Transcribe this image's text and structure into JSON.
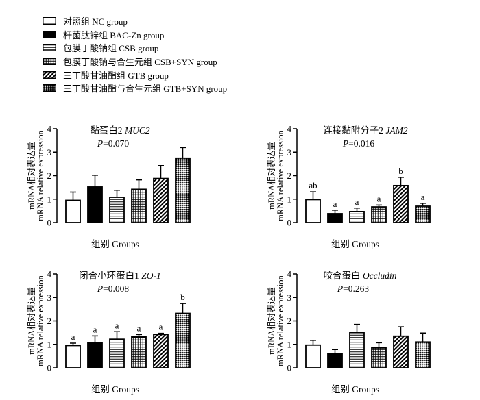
{
  "legend": [
    {
      "label": "对照组  NC group",
      "pattern": "white"
    },
    {
      "label": "杆菌肽锌组  BAC-Zn group",
      "pattern": "black"
    },
    {
      "label": "包膜丁酸钠组  CSB group",
      "pattern": "hlines"
    },
    {
      "label": "包膜丁酸钠与合生元组  CSB+SYN group",
      "pattern": "grid"
    },
    {
      "label": "三丁酸甘油酯组  GTB group",
      "pattern": "diag"
    },
    {
      "label": "三丁酸甘油酯与合生元组  GTB+SYN group",
      "pattern": "checker"
    }
  ],
  "colors": {
    "fill": "#ffffff",
    "ink": "#000000"
  },
  "chart_data": [
    {
      "type": "bar",
      "title_zh": "黏蛋白2 ",
      "title_gene": "MUC2",
      "p_label": "P",
      "p_value": "=0.070",
      "ylabel_zh": "mRNA相对表达量",
      "ylabel_en": "mRNA relative expression",
      "xlabel": "组别 Groups",
      "ylim": [
        0,
        4
      ],
      "yticks": [
        "0",
        "1",
        "2",
        "3",
        "4"
      ],
      "categories": [
        "NC group",
        "BAC-Zn group",
        "CSB group",
        "CSB+SYN group",
        "GTB group",
        "GTB+SYN group"
      ],
      "values": [
        0.95,
        1.52,
        1.08,
        1.42,
        1.88,
        2.75
      ],
      "errors": [
        0.35,
        0.5,
        0.3,
        0.4,
        0.55,
        0.45
      ],
      "letters": []
    },
    {
      "type": "bar",
      "title_zh": "连接黏附分子2 ",
      "title_gene": "JAM2",
      "p_label": "P",
      "p_value": "=0.016",
      "ylabel_zh": "mRNA相对表达量",
      "ylabel_en": "mRNA relative expression",
      "xlabel": "组别 Groups",
      "ylim": [
        0,
        4
      ],
      "yticks": [
        "0",
        "1",
        "2",
        "3",
        "4"
      ],
      "categories": [
        "NC group",
        "BAC-Zn group",
        "CSB group",
        "CSB+SYN group",
        "GTB group",
        "GTB+SYN group"
      ],
      "values": [
        0.98,
        0.38,
        0.47,
        0.67,
        1.58,
        0.7
      ],
      "errors": [
        0.33,
        0.15,
        0.15,
        0.08,
        0.35,
        0.12
      ],
      "letters": [
        "ab",
        "a",
        "a",
        "a",
        "b",
        "a"
      ]
    },
    {
      "type": "bar",
      "title_zh": "闭合小环蛋白1 ",
      "title_gene": "ZO-1",
      "p_label": "P",
      "p_value": "=0.008",
      "ylabel_zh": "mRNA相对表达量",
      "ylabel_en": "mRNA relative expression",
      "xlabel": "组别 Groups",
      "ylim": [
        0,
        4
      ],
      "yticks": [
        "0",
        "1",
        "2",
        "3",
        "4"
      ],
      "categories": [
        "NC group",
        "BAC-Zn group",
        "CSB group",
        "CSB+SYN group",
        "GTB group",
        "GTB+SYN group"
      ],
      "values": [
        0.95,
        1.08,
        1.22,
        1.32,
        1.42,
        2.32
      ],
      "errors": [
        0.1,
        0.28,
        0.32,
        0.1,
        0.05,
        0.42
      ],
      "letters": [
        "a",
        "a",
        "a",
        "a",
        "a",
        "b"
      ]
    },
    {
      "type": "bar",
      "title_zh": "咬合蛋白 ",
      "title_gene": "Occludin",
      "p_label": "P",
      "p_value": "=0.263",
      "ylabel_zh": "mRNA相对表达量",
      "ylabel_en": "mRNA relative expression",
      "xlabel": "组别 Groups",
      "ylim": [
        0,
        4
      ],
      "yticks": [
        "0",
        "1",
        "2",
        "3",
        "4"
      ],
      "categories": [
        "NC group",
        "BAC-Zn group",
        "CSB group",
        "CSB+SYN group",
        "GTB group",
        "GTB+SYN group"
      ],
      "values": [
        0.97,
        0.6,
        1.5,
        0.85,
        1.35,
        1.1
      ],
      "errors": [
        0.2,
        0.18,
        0.35,
        0.22,
        0.4,
        0.38
      ],
      "letters": []
    }
  ]
}
